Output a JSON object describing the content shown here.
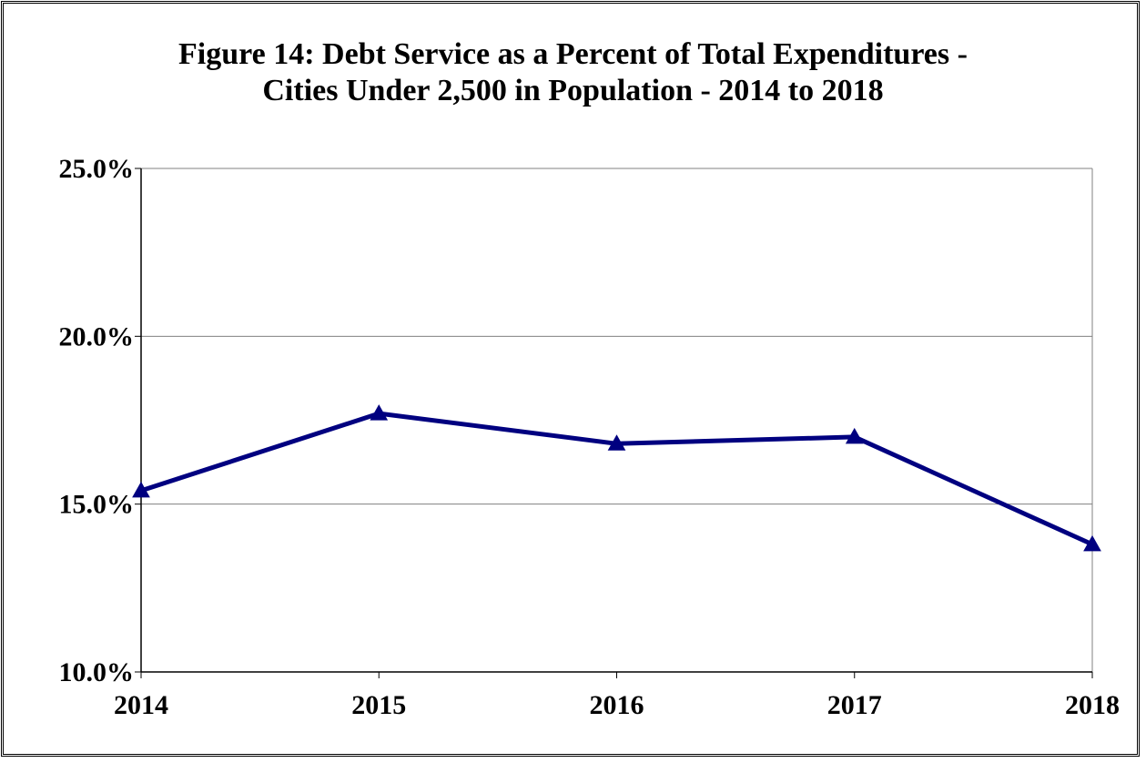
{
  "title_line1": "Figure 14:  Debt Service as a Percent of Total Expenditures -",
  "title_line2": "Cities Under 2,500 in Population - 2014 to 2018",
  "chart_data": {
    "type": "line",
    "title": "Figure 14:  Debt Service as a Percent of Total Expenditures - Cities Under 2,500 in Population - 2014 to 2018",
    "xlabel": "",
    "ylabel": "",
    "categories": [
      "2014",
      "2015",
      "2016",
      "2017",
      "2018"
    ],
    "series": [
      {
        "values": [
          15.4,
          17.7,
          16.8,
          17.0,
          13.8
        ],
        "color": "#000080",
        "marker": "triangle"
      }
    ],
    "ylim": [
      10,
      25
    ],
    "yticks": [
      10,
      15,
      20,
      25
    ],
    "ytick_labels": [
      "10.0%",
      "15.0%",
      "20.0%",
      "25.0%"
    ],
    "grid": "horizontal",
    "legend": "none"
  }
}
